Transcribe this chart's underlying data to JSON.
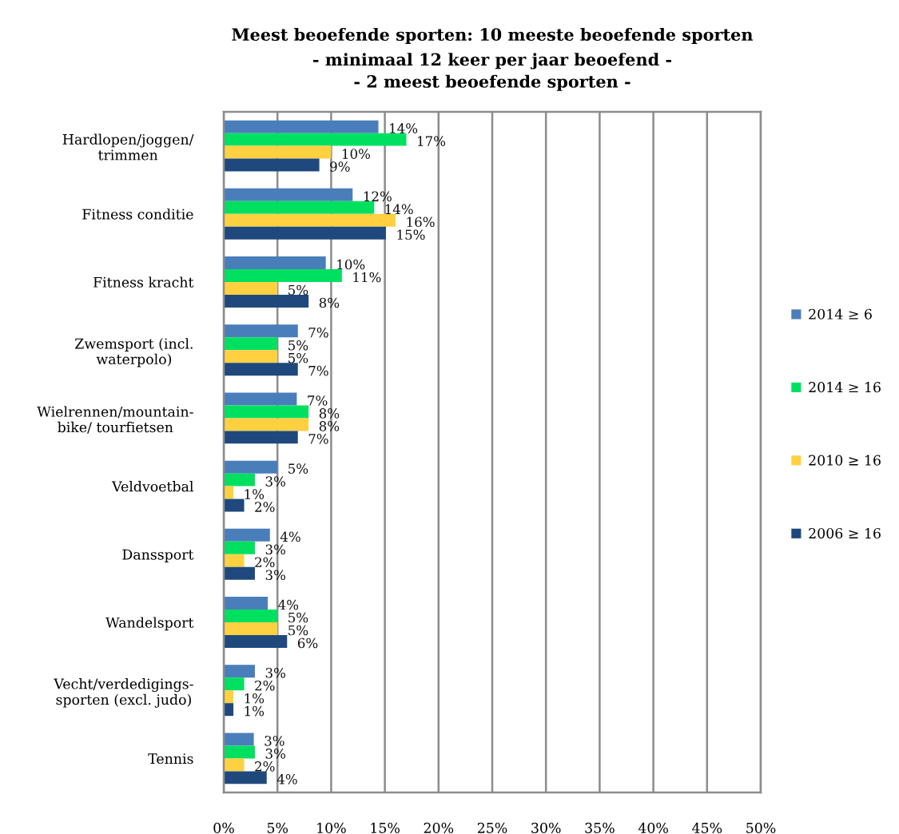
{
  "chart_data": {
    "type": "bar",
    "orientation": "horizontal",
    "title": "Meest beoefende sporten: 10 meeste beoefende sporten",
    "subtitle": "- minimaal 12 keer per jaar beoefend -\n- 2 meest beoefende sporten -",
    "categories": [
      "Hardlopen/joggen/\ntrimmen",
      "Fitness conditie",
      "Fitness kracht",
      "Zwemsport (incl.\nwaterpolo)",
      "Wielrennen/mountain-\nbike/ tourfietsen",
      "Veldvoetbal",
      "Danssport",
      "Wandelsport",
      "Vecht/verdedigings-\nsporten (excl. judo)",
      "Tennis"
    ],
    "series": [
      {
        "name": "2014 ≥ 6",
        "color": "#4a7ebb",
        "values": [
          14.4,
          12,
          9.5,
          6.9,
          6.8,
          5,
          4.3,
          4.1,
          2.9,
          2.8
        ],
        "value_labels": [
          "14%",
          "12%",
          "10%",
          "7%",
          "7%",
          "5%",
          "4%",
          "4%",
          "3%",
          "3%"
        ]
      },
      {
        "name": "2014 ≥ 16",
        "color": "#00e060",
        "values": [
          17,
          14,
          11,
          5,
          7.9,
          2.9,
          2.9,
          5,
          1.9,
          2.9
        ],
        "value_labels": [
          "17%",
          "14%",
          "11%",
          "5%",
          "8%",
          "3%",
          "3%",
          "5%",
          "2%",
          "3%"
        ]
      },
      {
        "name": "2010 ≥ 16",
        "color": "#ffd040",
        "values": [
          10,
          16,
          5,
          5,
          7.9,
          0.9,
          1.9,
          5,
          0.9,
          1.9
        ],
        "value_labels": [
          "10%",
          "16%",
          "5%",
          "5%",
          "8%",
          "1%",
          "2%",
          "5%",
          "1%",
          "2%"
        ]
      },
      {
        "name": "2006 ≥ 16",
        "color": "#1f497d",
        "values": [
          8.9,
          15.1,
          7.9,
          6.9,
          6.9,
          1.9,
          2.9,
          5.9,
          0.9,
          4
        ],
        "value_labels": [
          "9%",
          "15%",
          "8%",
          "7%",
          "7%",
          "2%",
          "3%",
          "6%",
          "1%",
          "4%"
        ]
      }
    ],
    "xlim": [
      0,
      50
    ],
    "xticks": [
      {
        "value": 0,
        "label": "0%"
      },
      {
        "value": 5,
        "label": "5%"
      },
      {
        "value": 10,
        "label": "10%"
      },
      {
        "value": 15,
        "label": "15%"
      },
      {
        "value": 20,
        "label": "20%"
      },
      {
        "value": 25,
        "label": "25%"
      },
      {
        "value": 30,
        "label": "30%"
      },
      {
        "value": 35,
        "label": "35%"
      },
      {
        "value": 40,
        "label": "40%"
      },
      {
        "value": 45,
        "label": "45%"
      },
      {
        "value": 50,
        "label": "50%"
      }
    ],
    "grid": "x",
    "legend": "right"
  }
}
